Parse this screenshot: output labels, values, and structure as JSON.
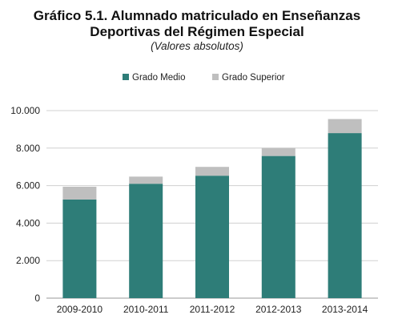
{
  "chart_data": {
    "type": "bar",
    "stacked": true,
    "title": "Gráfico 5.1. Alumnado matriculado en Enseñanzas Deportivas del Régimen Especial",
    "title_lines": [
      "Gráfico 5.1. Alumnado matriculado en Enseñanzas",
      "Deportivas del Régimen Especial"
    ],
    "subtitle": "(Valores absolutos)",
    "categories": [
      "2009-2010",
      "2010-2011",
      "2011-2012",
      "2012-2013",
      "2013-2014"
    ],
    "series": [
      {
        "name": "Grado Medio",
        "color": "#2e7d78",
        "values": [
          5260,
          6100,
          6530,
          7580,
          8800
        ]
      },
      {
        "name": "Grado Superior",
        "color": "#bfbfbf",
        "values": [
          680,
          380,
          470,
          430,
          750
        ]
      }
    ],
    "ylim": [
      0,
      10000
    ],
    "yticks": [
      0,
      2000,
      4000,
      6000,
      8000,
      10000
    ],
    "ytick_labels": [
      "0",
      "2.000",
      "4.000",
      "6.000",
      "8.000",
      "10.000"
    ],
    "grid": true,
    "legend_position": "top"
  }
}
